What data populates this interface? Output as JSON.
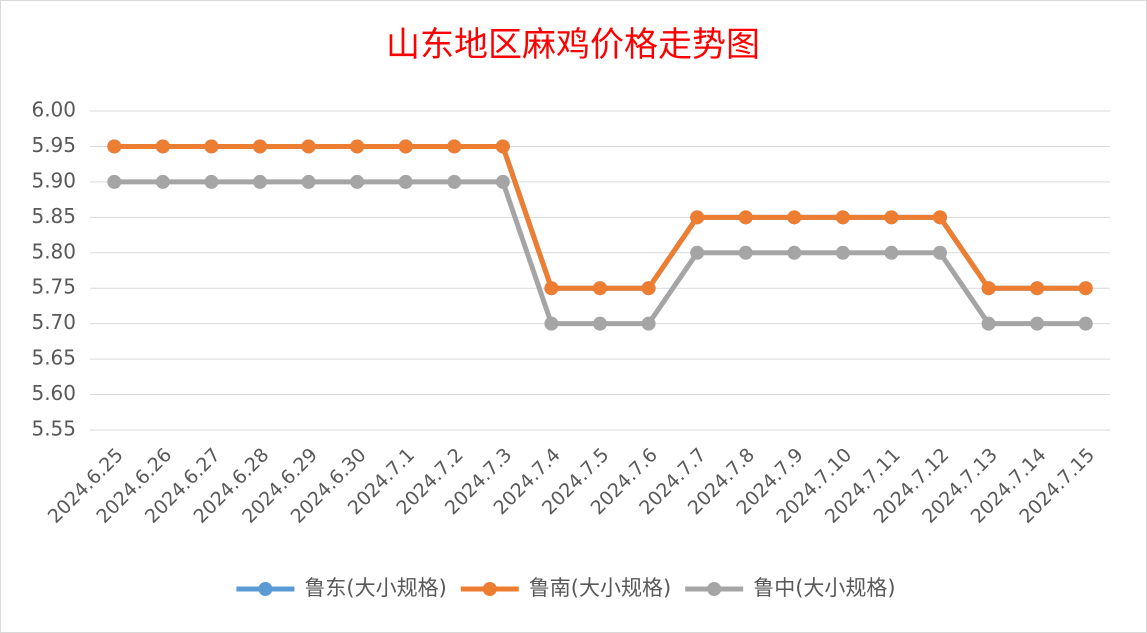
{
  "chart_data": {
    "type": "line",
    "title": "山东地区麻鸡价格走势图",
    "categories": [
      "2024.6.25",
      "2024.6.26",
      "2024.6.27",
      "2024.6.28",
      "2024.6.29",
      "2024.6.30",
      "2024.7.1",
      "2024.7.2",
      "2024.7.3",
      "2024.7.4",
      "2024.7.5",
      "2024.7.6",
      "2024.7.7",
      "2024.7.8",
      "2024.7.9",
      "2024.7.10",
      "2024.7.11",
      "2024.7.12",
      "2024.7.13",
      "2024.7.14",
      "2024.7.15"
    ],
    "series": [
      {
        "name": "鲁东(大小规格)",
        "color": "#5b9bd5",
        "values": [
          5.95,
          5.95,
          5.95,
          5.95,
          5.95,
          5.95,
          5.95,
          5.95,
          5.95,
          5.75,
          5.75,
          5.75,
          5.85,
          5.85,
          5.85,
          5.85,
          5.85,
          5.85,
          5.75,
          5.75,
          5.75
        ]
      },
      {
        "name": "鲁南(大小规格)",
        "color": "#ed7d31",
        "values": [
          5.95,
          5.95,
          5.95,
          5.95,
          5.95,
          5.95,
          5.95,
          5.95,
          5.95,
          5.75,
          5.75,
          5.75,
          5.85,
          5.85,
          5.85,
          5.85,
          5.85,
          5.85,
          5.75,
          5.75,
          5.75
        ]
      },
      {
        "name": "鲁中(大小规格)",
        "color": "#a5a5a5",
        "values": [
          5.9,
          5.9,
          5.9,
          5.9,
          5.9,
          5.9,
          5.9,
          5.9,
          5.9,
          5.7,
          5.7,
          5.7,
          5.8,
          5.8,
          5.8,
          5.8,
          5.8,
          5.8,
          5.7,
          5.7,
          5.7
        ]
      }
    ],
    "ylim": [
      5.55,
      6.0
    ],
    "yticks": [
      {
        "value": 6.0,
        "label": "6.00"
      },
      5.95,
      {
        "value": 5.9,
        "label": "5.90"
      },
      5.85,
      {
        "value": 5.8,
        "label": "5.80"
      },
      5.75,
      {
        "value": 5.7,
        "label": "5.70"
      },
      5.65,
      {
        "value": 5.6,
        "label": "5.60"
      },
      5.55
    ],
    "grid": true,
    "legend": "bottom"
  }
}
